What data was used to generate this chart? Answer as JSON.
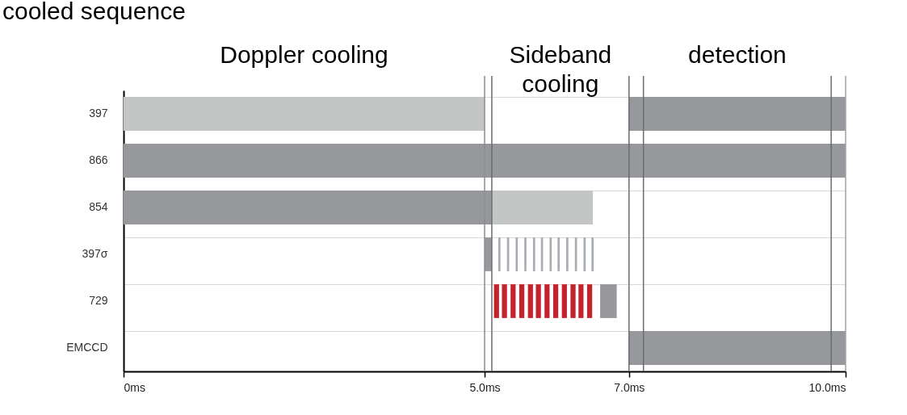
{
  "chart_data": {
    "type": "bar",
    "orientation": "horizontal",
    "title": "cooled sequence",
    "categories": [
      "397",
      "866",
      "854",
      "397σ",
      "729",
      "EMCCD"
    ],
    "series": [
      {
        "colors": [
          "#c4c6c6",
          "#96989c",
          "#96989c",
          "#96989c",
          "#c4222c",
          "#96989c"
        ],
        "base": [
          0,
          0,
          0,
          5.0,
          5.13,
          7.0
        ],
        "values": [
          5.0,
          10.0,
          5.1,
          0.1,
          0.07,
          3.0
        ]
      },
      {
        "colors": [
          "#96989c",
          null,
          "#c4c6c6",
          "#a8acb2",
          "#c4222c",
          null
        ],
        "base": [
          7.0,
          null,
          5.1,
          5.19,
          5.24,
          null
        ],
        "values": [
          3.0,
          null,
          1.4,
          0.03,
          0.07,
          null
        ]
      },
      {
        "colors": [
          null,
          null,
          null,
          "#a8acb2",
          "#c4222c",
          null
        ],
        "base": [
          null,
          null,
          null,
          5.31,
          5.36,
          null
        ],
        "values": [
          null,
          null,
          null,
          0.03,
          0.07,
          null
        ]
      },
      {
        "colors": [
          null,
          null,
          null,
          "#a8acb2",
          "#c4222c",
          null
        ],
        "base": [
          null,
          null,
          null,
          5.43,
          5.48,
          null
        ],
        "values": [
          null,
          null,
          null,
          0.03,
          0.07,
          null
        ]
      },
      {
        "colors": [
          null,
          null,
          null,
          "#a8acb2",
          "#c4222c",
          null
        ],
        "base": [
          null,
          null,
          null,
          5.55,
          5.6,
          null
        ],
        "values": [
          null,
          null,
          null,
          0.03,
          0.07,
          null
        ]
      },
      {
        "colors": [
          null,
          null,
          null,
          "#a8acb2",
          "#c4222c",
          null
        ],
        "base": [
          null,
          null,
          null,
          5.67,
          5.71,
          null
        ],
        "values": [
          null,
          null,
          null,
          0.03,
          0.07,
          null
        ]
      },
      {
        "colors": [
          null,
          null,
          null,
          "#a8acb2",
          "#c4222c",
          null
        ],
        "base": [
          null,
          null,
          null,
          5.78,
          5.83,
          null
        ],
        "values": [
          null,
          null,
          null,
          0.03,
          0.07,
          null
        ]
      },
      {
        "colors": [
          null,
          null,
          null,
          "#a8acb2",
          "#c4222c",
          null
        ],
        "base": [
          null,
          null,
          null,
          5.9,
          5.95,
          null
        ],
        "values": [
          null,
          null,
          null,
          0.03,
          0.07,
          null
        ]
      },
      {
        "colors": [
          null,
          null,
          null,
          "#a8acb2",
          "#c4222c",
          null
        ],
        "base": [
          null,
          null,
          null,
          6.01,
          6.07,
          null
        ],
        "values": [
          null,
          null,
          null,
          0.03,
          0.07,
          null
        ]
      },
      {
        "colors": [
          null,
          null,
          null,
          "#a8acb2",
          "#c4222c",
          null
        ],
        "base": [
          null,
          null,
          null,
          6.13,
          6.19,
          null
        ],
        "values": [
          null,
          null,
          null,
          0.03,
          0.07,
          null
        ]
      },
      {
        "colors": [
          null,
          null,
          null,
          "#a8acb2",
          "#c4222c",
          null
        ],
        "base": [
          null,
          null,
          null,
          6.25,
          6.3,
          null
        ],
        "values": [
          null,
          null,
          null,
          0.03,
          0.07,
          null
        ]
      },
      {
        "colors": [
          null,
          null,
          null,
          "#a8acb2",
          "#c4222c",
          null
        ],
        "base": [
          null,
          null,
          null,
          6.37,
          6.42,
          null
        ],
        "values": [
          null,
          null,
          null,
          0.03,
          0.07,
          null
        ]
      },
      {
        "colors": [
          null,
          null,
          null,
          "#a8acb2",
          "#96989c",
          null
        ],
        "base": [
          null,
          null,
          null,
          6.48,
          6.6,
          null
        ],
        "values": [
          null,
          null,
          null,
          0.03,
          0.23,
          null
        ]
      }
    ],
    "xlim": [
      0,
      10
    ],
    "xticks": [
      {
        "value": 0,
        "label": "0ms"
      },
      {
        "value": 5,
        "label": "5.0ms"
      },
      {
        "value": 7,
        "label": "7.0ms"
      },
      {
        "value": 10,
        "label": "10.0ms"
      }
    ],
    "grid": "y",
    "ref_lines": [
      {
        "axis": "x",
        "value": 5.0,
        "color": "#8a8c90"
      },
      {
        "axis": "x",
        "value": 5.1,
        "color": "#6a6c70"
      },
      {
        "axis": "x",
        "value": 7.0,
        "color": "#6a6c70"
      },
      {
        "axis": "x",
        "value": 7.2,
        "color": "#6a6c70"
      },
      {
        "axis": "x",
        "value": 9.8,
        "color": "#6a6c70"
      },
      {
        "axis": "x",
        "value": 10.0,
        "color": "#a0a2a6"
      }
    ],
    "annotations": [
      "Doppler cooling",
      "Sideband\ncooling",
      "detection"
    ]
  }
}
